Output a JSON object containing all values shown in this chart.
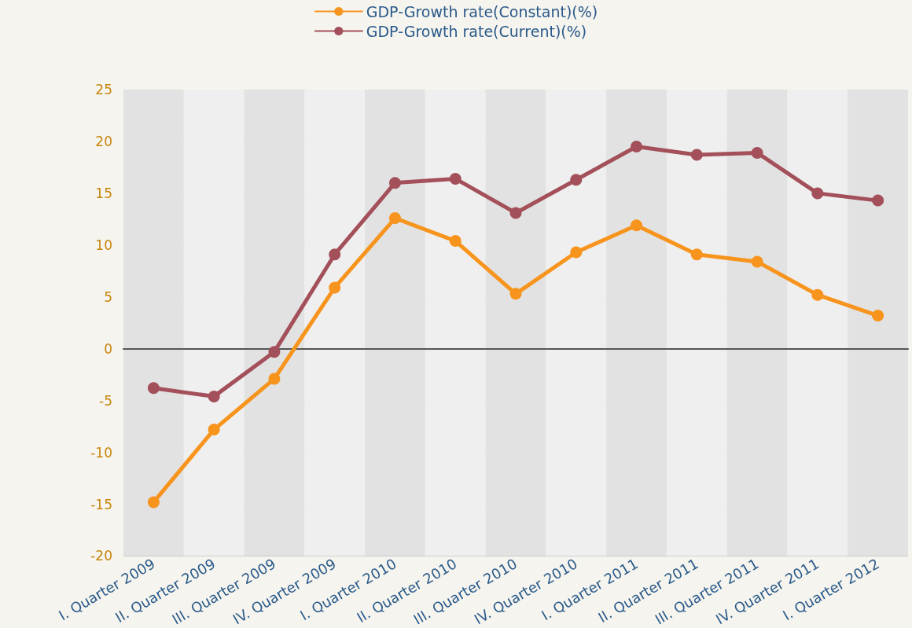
{
  "chart_data": {
    "type": "line",
    "categories": [
      "I. Quarter 2009",
      "II. Quarter 2009",
      "III. Quarter 2009",
      "IV. Quarter 2009",
      "I. Quarter 2010",
      "II. Quarter 2010",
      "III. Quarter 2010",
      "IV. Quarter 2010",
      "I. Quarter 2011",
      "II. Quarter 2011",
      "III. Quarter 2011",
      "IV. Quarter 2011",
      "I. Quarter 2012"
    ],
    "series": [
      {
        "name": "GDP-Growth rate(Constant)(%)",
        "color": "#f7941d",
        "values": [
          -14.8,
          -7.8,
          -2.9,
          5.9,
          12.6,
          10.4,
          5.3,
          9.3,
          11.9,
          9.1,
          8.4,
          5.2,
          3.2
        ]
      },
      {
        "name": "GDP-Growth rate(Current)(%)",
        "color": "#a3505a",
        "values": [
          -3.8,
          -4.6,
          -0.3,
          9.1,
          16.0,
          16.4,
          13.1,
          16.3,
          19.5,
          18.7,
          18.9,
          15.0,
          14.3
        ]
      }
    ],
    "ylim": [
      -20,
      25
    ],
    "yticks": [
      -20,
      -15,
      -10,
      -5,
      0,
      5,
      10,
      15,
      20,
      25
    ],
    "grid": "y",
    "legend": "top",
    "marker": "circle",
    "line_style": "solid"
  }
}
